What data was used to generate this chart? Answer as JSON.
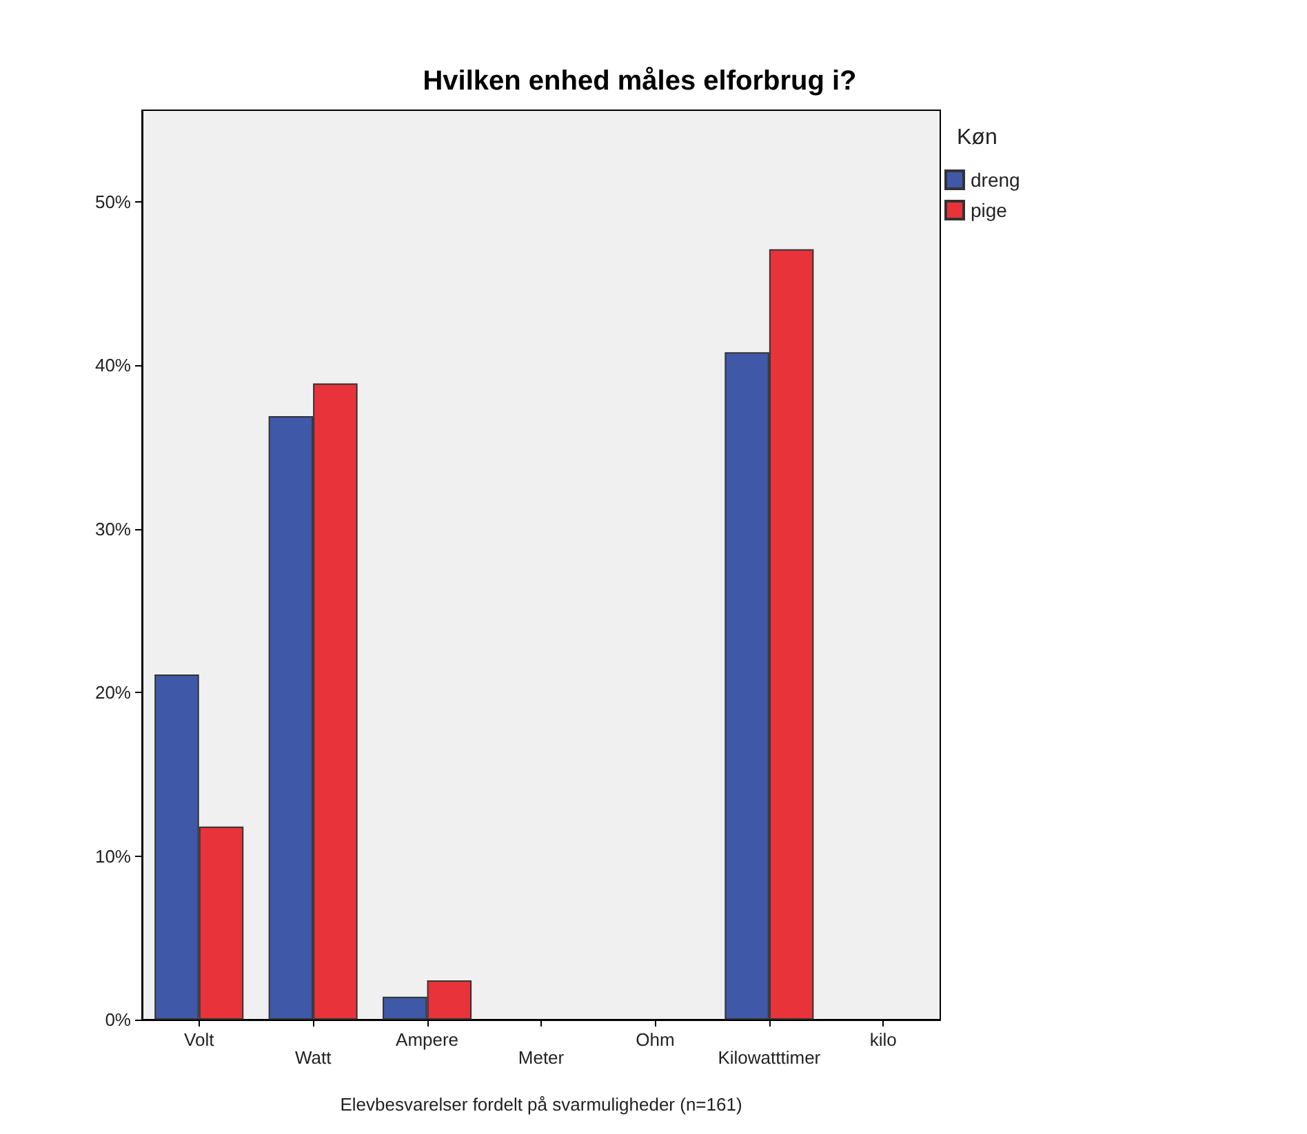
{
  "chart_data": {
    "type": "bar",
    "title": "Hvilken enhed måles elforbrug i?",
    "xlabel": "Elevbesvarelser fordelt på svarmuligheder (n=161)",
    "legend_title": "Køn",
    "categories": [
      "Volt",
      "Watt",
      "Ampere",
      "Meter",
      "Ohm",
      "Kilowatttimer",
      "kilo"
    ],
    "series": [
      {
        "name": "dreng",
        "color": "#3f58a8",
        "values": [
          21.1,
          36.9,
          1.4,
          0,
          0,
          40.8,
          0
        ]
      },
      {
        "name": "pige",
        "color": "#e8333b",
        "values": [
          11.8,
          38.9,
          2.4,
          0,
          0,
          47.1,
          0
        ]
      }
    ],
    "ylim": [
      0,
      55.6
    ],
    "yticks": [
      {
        "value": 0,
        "label": "0%"
      },
      {
        "value": 10,
        "label": "10%"
      },
      {
        "value": 20,
        "label": "20%"
      },
      {
        "value": 30,
        "label": "30%"
      },
      {
        "value": 40,
        "label": "40%"
      },
      {
        "value": 50,
        "label": "50%"
      }
    ],
    "grid": false,
    "legend": "top right"
  }
}
